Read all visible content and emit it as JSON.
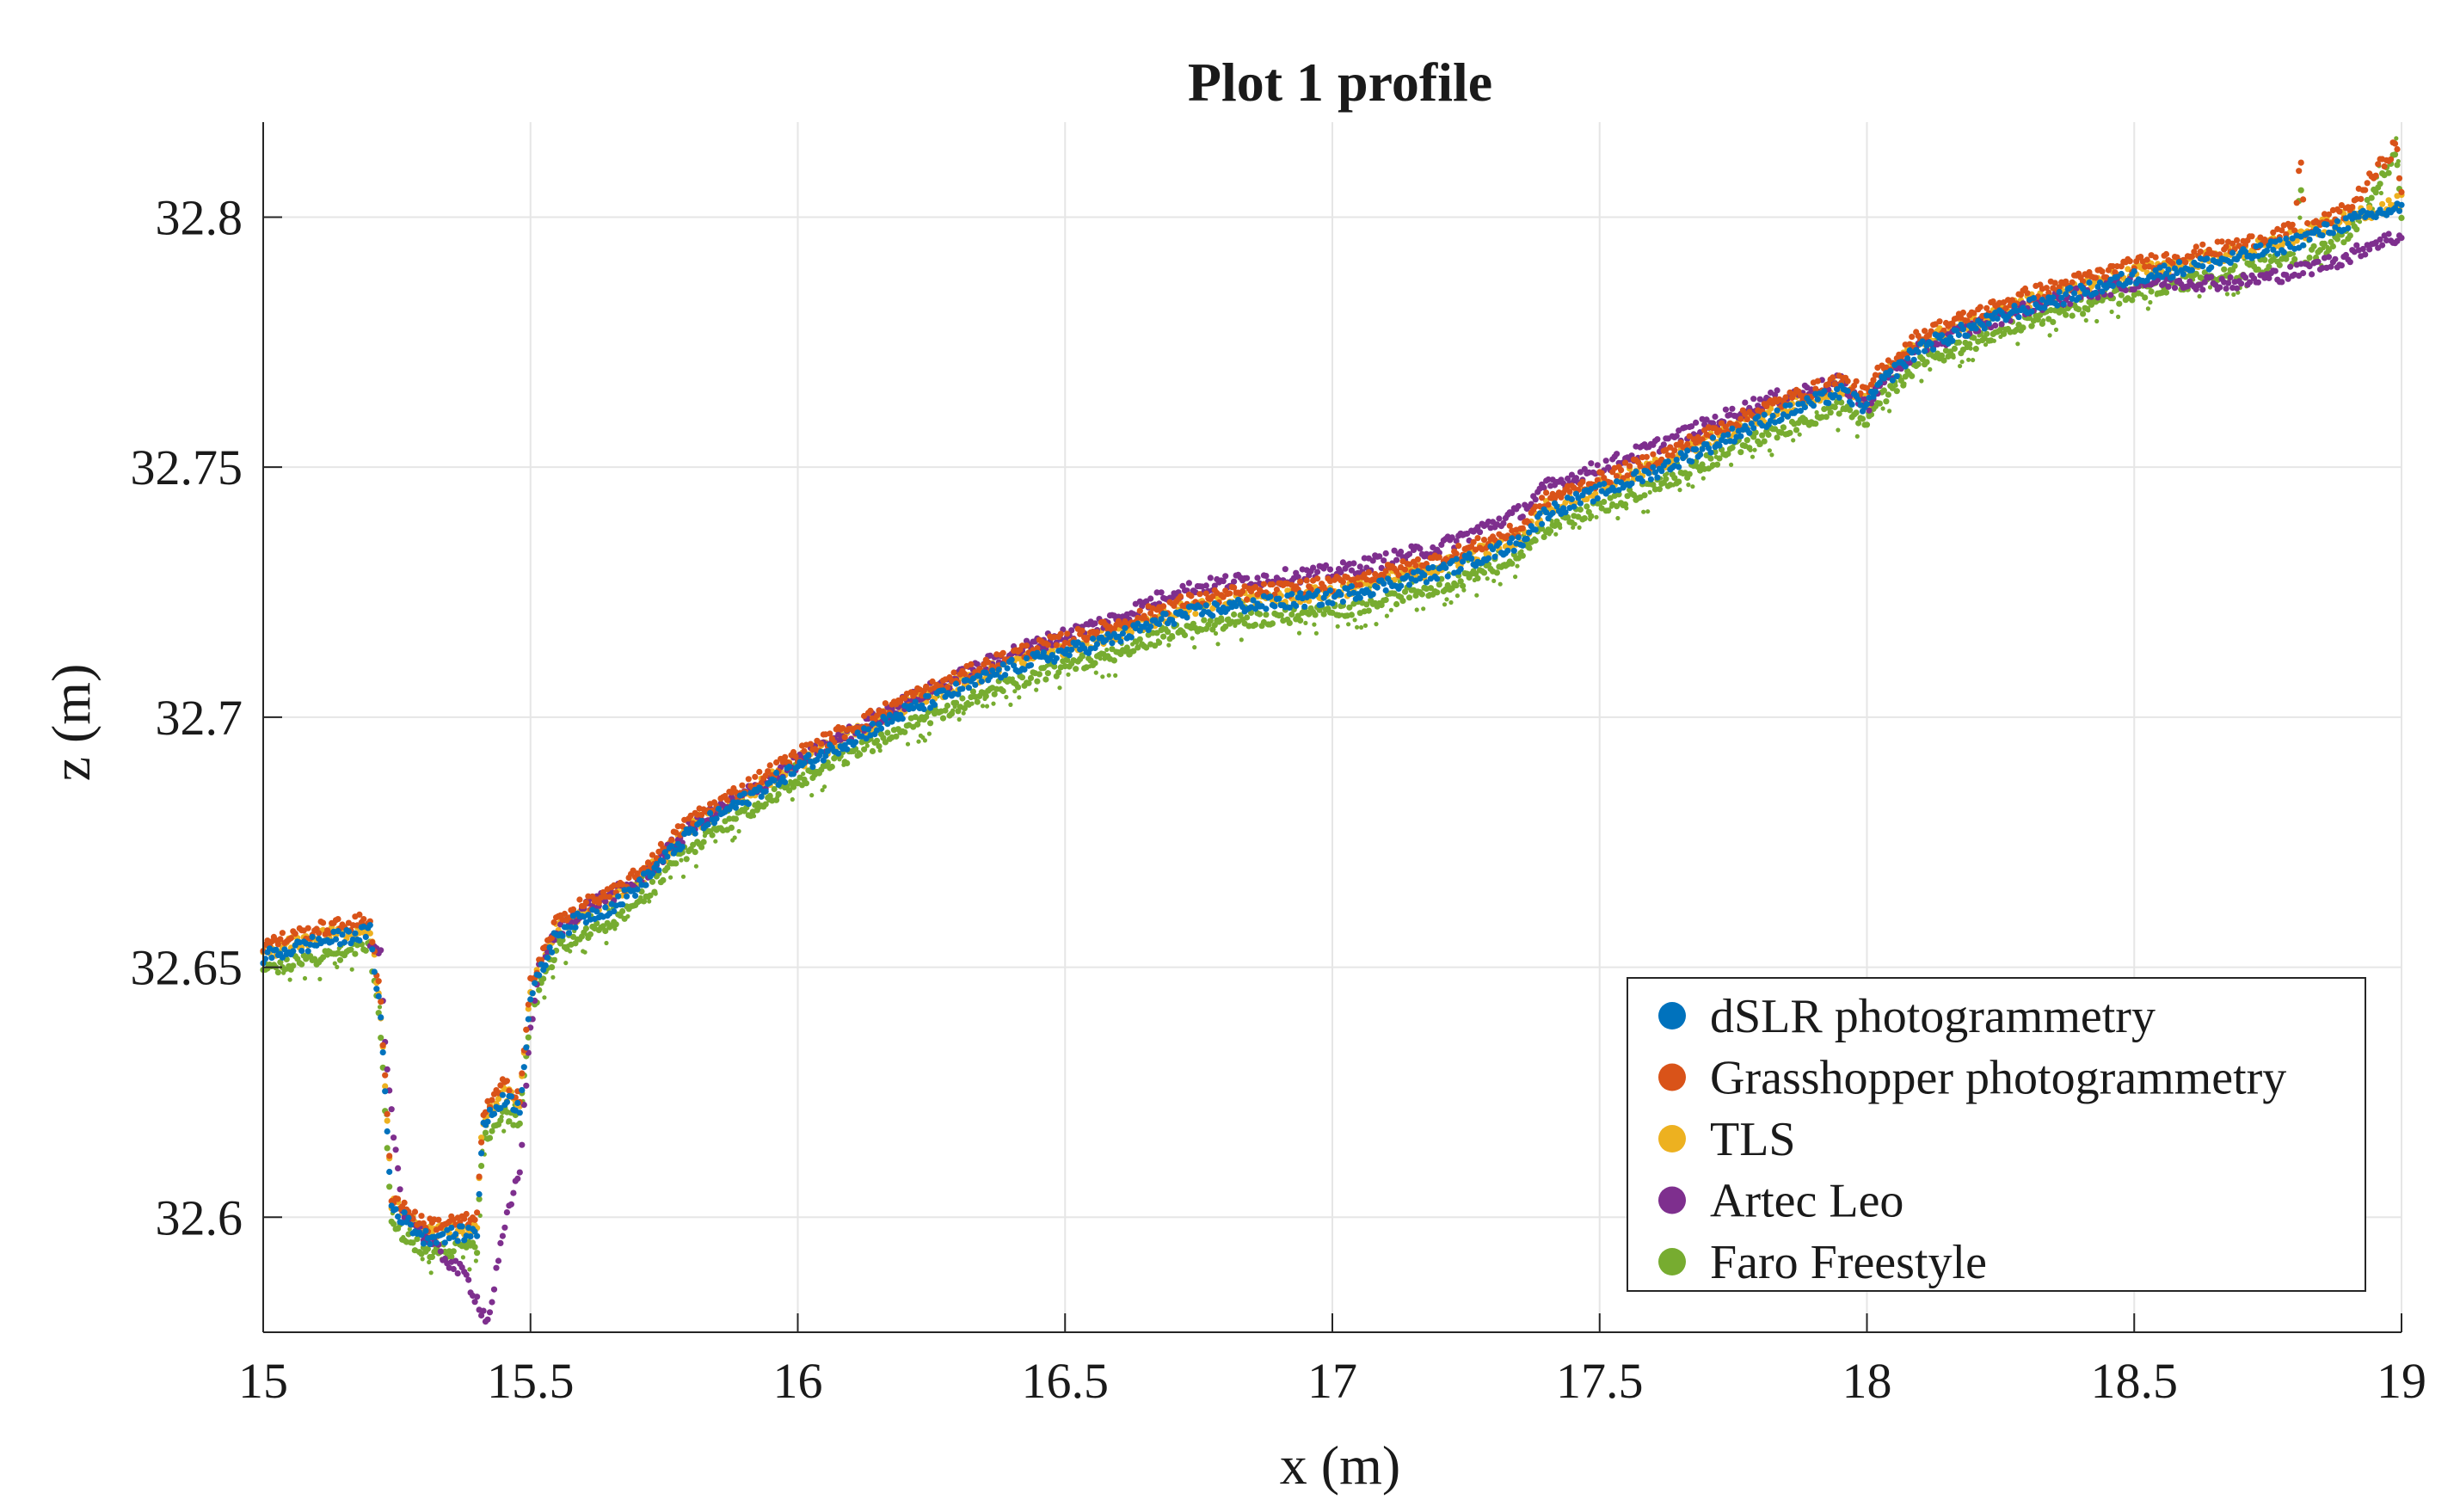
{
  "chart_data": {
    "type": "scatter",
    "title": "Plot 1 profile",
    "xlabel": "x (m)",
    "ylabel": "z (m)",
    "xlim": [
      15,
      19
    ],
    "ylim": [
      32.577,
      32.819
    ],
    "xticks": [
      15,
      15.5,
      16,
      16.5,
      17,
      17.5,
      18,
      18.5,
      19
    ],
    "xtick_labels": [
      "15",
      "15.5",
      "16",
      "16.5",
      "17",
      "17.5",
      "18",
      "18.5",
      "19"
    ],
    "yticks": [
      32.6,
      32.65,
      32.7,
      32.75,
      32.8
    ],
    "ytick_labels": [
      "32.6",
      "32.65",
      "32.7",
      "32.75",
      "32.8"
    ],
    "grid": true,
    "legend_position": "bottom-right",
    "series": [
      {
        "name": "dSLR photogrammetry",
        "color": "#0072BD",
        "offset": 0.0,
        "x": [
          15.0,
          15.1,
          15.2,
          15.22,
          15.24,
          15.3,
          15.4,
          15.41,
          15.45,
          15.48,
          15.5,
          15.55,
          15.6,
          15.65,
          15.7,
          15.8,
          16.0,
          16.2,
          16.4,
          16.6,
          16.7,
          16.8,
          17.0,
          17.2,
          17.35,
          17.4,
          17.6,
          17.8,
          17.95,
          18.0,
          18.02,
          18.1,
          18.3,
          18.5,
          18.7,
          18.8,
          18.9,
          19.0
        ],
        "z": [
          32.652,
          32.655,
          32.657,
          32.64,
          32.602,
          32.596,
          32.597,
          32.618,
          32.624,
          32.622,
          32.644,
          32.657,
          32.66,
          32.662,
          32.666,
          32.677,
          32.69,
          32.701,
          32.71,
          32.716,
          32.72,
          32.722,
          32.724,
          32.729,
          32.735,
          32.741,
          32.749,
          32.759,
          32.765,
          32.762,
          32.766,
          32.774,
          32.782,
          32.788,
          32.792,
          32.795,
          32.799,
          32.802
        ]
      },
      {
        "name": "Grasshopper photogrammetry",
        "color": "#D95319",
        "offset": 0.0025,
        "x": [
          15.0,
          15.1,
          15.2,
          15.22,
          15.24,
          15.3,
          15.4,
          15.41,
          15.45,
          15.48,
          15.5,
          15.55,
          15.6,
          15.65,
          15.7,
          15.8,
          16.0,
          16.2,
          16.4,
          16.6,
          16.7,
          16.8,
          17.0,
          17.2,
          17.35,
          17.4,
          17.6,
          17.8,
          17.95,
          18.0,
          18.02,
          18.1,
          18.3,
          18.5,
          18.7,
          18.8,
          18.81,
          18.82,
          18.9,
          18.99,
          19.0
        ],
        "z": [
          32.652,
          32.655,
          32.657,
          32.64,
          32.602,
          32.596,
          32.597,
          32.618,
          32.624,
          32.622,
          32.644,
          32.657,
          32.66,
          32.662,
          32.666,
          32.677,
          32.69,
          32.701,
          32.71,
          32.716,
          32.72,
          32.722,
          32.724,
          32.729,
          32.735,
          32.741,
          32.749,
          32.759,
          32.765,
          32.762,
          32.766,
          32.774,
          32.782,
          32.788,
          32.792,
          32.795,
          32.81,
          32.795,
          32.799,
          32.812,
          32.802
        ]
      },
      {
        "name": "TLS",
        "color": "#EDB120",
        "offset": 0.001,
        "x": [
          15.0,
          15.1,
          15.2,
          15.22,
          15.24,
          15.3,
          15.4,
          15.41,
          15.45,
          15.48,
          15.5,
          15.55,
          15.6,
          15.65,
          15.7,
          15.8,
          16.0,
          16.2,
          16.4,
          16.6,
          16.7,
          16.8,
          17.0,
          17.2,
          17.35,
          17.4,
          17.6,
          17.8,
          17.95,
          18.0,
          18.02,
          18.1,
          18.3,
          18.5,
          18.7,
          18.8,
          18.9,
          19.0
        ],
        "z": [
          32.652,
          32.655,
          32.657,
          32.64,
          32.602,
          32.596,
          32.597,
          32.618,
          32.624,
          32.622,
          32.644,
          32.657,
          32.66,
          32.662,
          32.666,
          32.677,
          32.69,
          32.701,
          32.71,
          32.716,
          32.72,
          32.722,
          32.724,
          32.729,
          32.735,
          32.741,
          32.749,
          32.759,
          32.765,
          32.762,
          32.766,
          32.774,
          32.782,
          32.788,
          32.792,
          32.795,
          32.799,
          32.802
        ]
      },
      {
        "name": "Artec Leo",
        "color": "#7E2F8E",
        "offset": 0.0,
        "x": [
          15.2,
          15.22,
          15.23,
          15.26,
          15.32,
          15.38,
          15.42,
          15.45,
          15.48,
          15.5,
          15.52,
          15.56,
          15.6,
          15.7,
          15.8,
          16.0,
          16.2,
          16.4,
          16.6,
          16.7,
          16.8,
          17.0,
          17.2,
          17.35,
          17.4,
          17.6,
          17.8,
          17.95,
          18.0,
          18.02,
          18.1,
          18.3,
          18.5,
          18.7,
          18.8,
          18.9,
          18.95,
          19.0
        ],
        "z": [
          32.654,
          32.652,
          32.63,
          32.602,
          32.594,
          32.588,
          32.579,
          32.597,
          32.61,
          32.638,
          32.652,
          32.658,
          32.662,
          32.667,
          32.678,
          32.691,
          32.703,
          32.713,
          32.72,
          32.725,
          32.727,
          32.729,
          32.734,
          32.741,
          32.746,
          32.754,
          32.763,
          32.767,
          32.762,
          32.766,
          32.774,
          32.782,
          32.787,
          32.787,
          32.789,
          32.792,
          32.795,
          32.796
        ]
      },
      {
        "name": "Faro Freestyle",
        "color": "#77AC30",
        "offset": -0.003,
        "x": [
          15.0,
          15.1,
          15.2,
          15.22,
          15.24,
          15.3,
          15.4,
          15.41,
          15.45,
          15.48,
          15.5,
          15.55,
          15.6,
          15.65,
          15.7,
          15.8,
          16.0,
          16.2,
          16.4,
          16.6,
          16.7,
          16.8,
          17.0,
          17.2,
          17.35,
          17.4,
          17.6,
          17.8,
          17.95,
          18.0,
          18.02,
          18.1,
          18.3,
          18.5,
          18.7,
          18.8,
          18.81,
          18.82,
          18.9,
          18.99,
          19.0
        ],
        "z": [
          32.652,
          32.655,
          32.657,
          32.64,
          32.602,
          32.596,
          32.597,
          32.618,
          32.624,
          32.622,
          32.644,
          32.657,
          32.66,
          32.662,
          32.666,
          32.677,
          32.69,
          32.701,
          32.71,
          32.716,
          32.72,
          32.722,
          32.724,
          32.729,
          32.735,
          32.741,
          32.749,
          32.759,
          32.765,
          32.762,
          32.766,
          32.774,
          32.782,
          32.788,
          32.792,
          32.795,
          32.81,
          32.795,
          32.799,
          32.815,
          32.802
        ]
      }
    ]
  }
}
